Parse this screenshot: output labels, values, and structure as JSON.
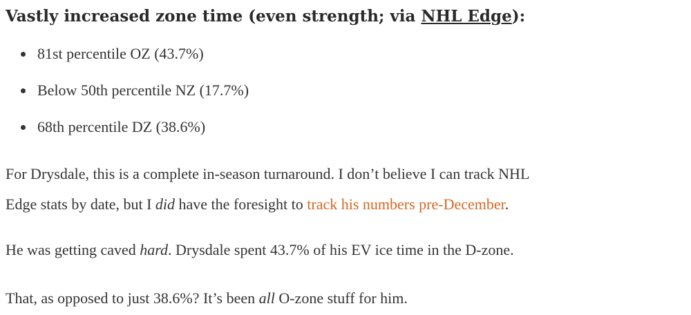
{
  "heading": {
    "text": "Vastly increased zone time (even strength; via ",
    "link": "NHL Edge",
    "end": "):"
  },
  "bullets": [
    "81st percentile OZ (43.7%)",
    "Below 50th percentile NZ (17.7%)",
    "68th percentile DZ (38.6%)"
  ],
  "paragraphs": [
    [
      "For Drysdale, this is a complete in-season turnaround. I don’t believe I can track NHL ",
      "Edge stats by date, but I ",
      "did",
      " have the foresight to ",
      "track his numbers pre-December",
      "."
    ],
    [
      "He was getting caved ",
      "hard",
      ". Drysdale spent 43.7% of his EV ice time in the D-zone."
    ],
    [
      "That, as opposed to just 38.6%? It’s been ",
      "all",
      " O-zone stuff for him."
    ]
  ]
}
